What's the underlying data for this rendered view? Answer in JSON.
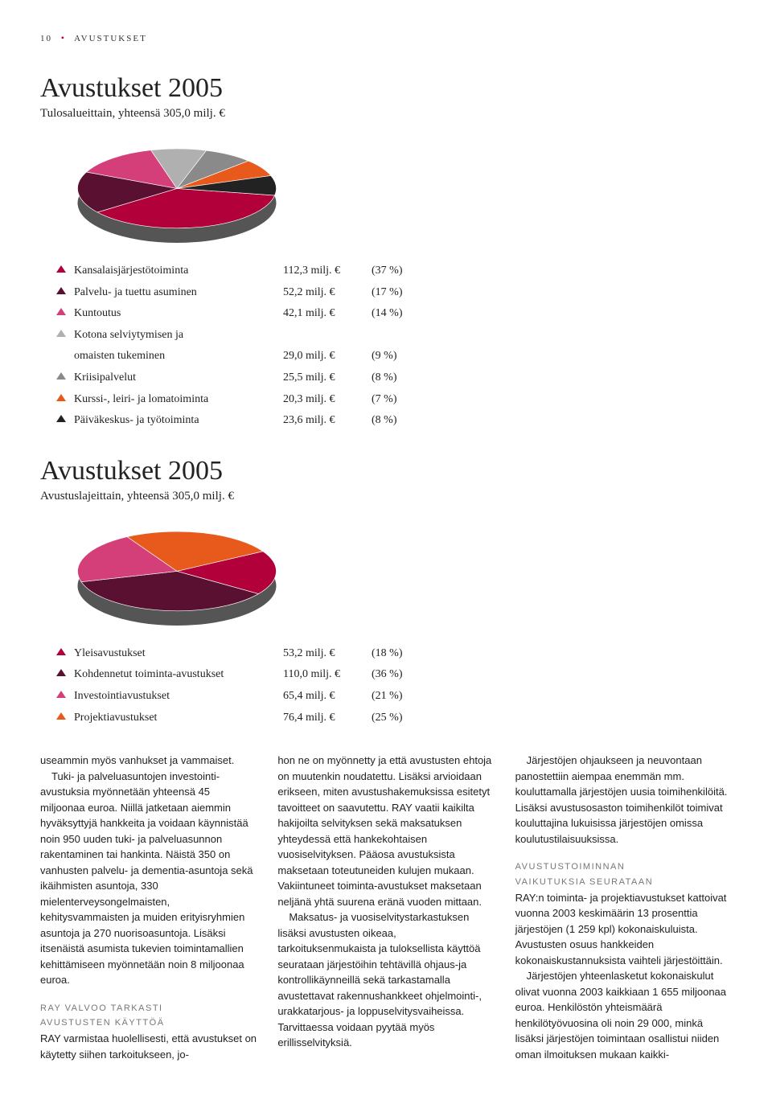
{
  "header": {
    "page_num": "10",
    "section": "AVUSTUKSET"
  },
  "chart1": {
    "title": "Avustukset 2005",
    "subtitle": "Tulosalueittain, yhteensä 305,0 milj. €",
    "type": "pie",
    "slices": [
      {
        "pct": 37,
        "color": "#b1003a"
      },
      {
        "pct": 17,
        "color": "#5a1030"
      },
      {
        "pct": 14,
        "color": "#d43f7a"
      },
      {
        "pct": 9,
        "color": "#b0b0b0"
      },
      {
        "pct": 8,
        "color": "#8a8a8a"
      },
      {
        "pct": 7,
        "color": "#e85a1c"
      },
      {
        "pct": 8,
        "color": "#222222"
      }
    ],
    "legend": [
      {
        "color": "#b1003a",
        "label": "Kansalaisjärjestötoiminta",
        "value": "112,3 milj. €",
        "pct": "(37 %)"
      },
      {
        "color": "#5a1030",
        "label": "Palvelu- ja tuettu asuminen",
        "value": "52,2 milj. €",
        "pct": "(17 %)"
      },
      {
        "color": "#d43f7a",
        "label": "Kuntoutus",
        "value": "42,1 milj. €",
        "pct": "(14 %)"
      },
      {
        "color": "#b0b0b0",
        "label": "Kotona selviytymisen ja",
        "label2": "omaisten tukeminen",
        "value": "29,0 milj. €",
        "pct": "(9 %)"
      },
      {
        "color": "#8a8a8a",
        "label": "Kriisipalvelut",
        "value": "25,5 milj. €",
        "pct": "(8 %)"
      },
      {
        "color": "#e85a1c",
        "label": "Kurssi-, leiri- ja lomatoiminta",
        "value": "20,3 milj. €",
        "pct": "(7 %)"
      },
      {
        "color": "#222222",
        "label": "Päiväkeskus- ja työtoiminta",
        "value": "23,6 milj. €",
        "pct": "(8 %)"
      }
    ]
  },
  "chart2": {
    "title": "Avustukset 2005",
    "subtitle": "Avustuslajeittain, yhteensä 305,0 milj. €",
    "type": "pie",
    "slices": [
      {
        "pct": 18,
        "color": "#b1003a"
      },
      {
        "pct": 36,
        "color": "#5a1030"
      },
      {
        "pct": 21,
        "color": "#d43f7a"
      },
      {
        "pct": 25,
        "color": "#e85a1c"
      }
    ],
    "legend": [
      {
        "color": "#b1003a",
        "label": "Yleisavustukset",
        "value": "53,2 milj. €",
        "pct": "(18 %)"
      },
      {
        "color": "#5a1030",
        "label": "Kohdennetut toiminta-avustukset",
        "value": "110,0 milj. €",
        "pct": "(36 %)"
      },
      {
        "color": "#d43f7a",
        "label": "Investointiavustukset",
        "value": "65,4 milj. €",
        "pct": "(21 %)"
      },
      {
        "color": "#e85a1c",
        "label": "Projektiavustukset",
        "value": "76,4 milj. €",
        "pct": "(25 %)"
      }
    ]
  },
  "body": {
    "col1": {
      "p1": "useammin myös vanhukset ja vammaiset.",
      "p2": "Tuki- ja palveluasuntojen investointi-avustuksia myönnetään yhteensä 45 miljoonaa euroa. Niillä jatketaan aiemmin hyväksyttyjä hankkeita ja voidaan käynnistää noin 950 uuden tuki- ja palveluasunnon rakentaminen tai hankinta. Näistä 350 on vanhusten palvelu- ja dementia-asuntoja sekä ikäihmisten asuntoja, 330 mielenterveysongelmaisten, kehitysvammaisten ja muiden erityisryhmien asuntoja ja 270 nuorisoasuntoja. Lisäksi itsenäistä asumista tukevien toimintamallien kehittämiseen myönnetään noin 8 miljoonaa euroa.",
      "h1a": "RAY VALVOO TARKASTI",
      "h1b": "AVUSTUSTEN KÄYTTÖÄ",
      "p3": "RAY varmistaa huolellisesti, että avustukset on käytetty siihen tarkoitukseen, jo-"
    },
    "col2": {
      "p1": "hon ne on myönnetty ja että avustusten ehtoja on muutenkin noudatettu. Lisäksi arvioidaan erikseen, miten avustushakemuksissa esitetyt tavoitteet on saavutettu. RAY vaatii kaikilta hakijoilta selvityksen sekä maksatuksen yhteydessä että hankekohtaisen vuosiselvityksen. Pääosa avustuksista maksetaan toteutuneiden kulujen mukaan. Vakiintuneet toiminta-avustukset maksetaan neljänä yhtä suurena eränä vuoden mittaan.",
      "p2": "Maksatus- ja vuosiselvitystarkastuksen lisäksi avustusten oikeaa, tarkoituksenmukaista ja tuloksellista käyttöä seurataan järjestöihin tehtävillä ohjaus-ja kontrollikäynneillä sekä tarkastamalla avustettavat rakennushankkeet ohjelmointi-, urakkatarjous- ja loppuselvitysvaiheissa. Tarvittaessa voidaan pyytää myös erillisselvityksiä."
    },
    "col3": {
      "p1": "Järjestöjen ohjaukseen ja neuvontaan panostettiin aiempaa enemmän mm. kouluttamalla järjestöjen uusia toimihenkilöitä. Lisäksi avustusosaston toimihenkilöt toimivat kouluttajina lukuisissa järjestöjen omissa koulutustilaisuuksissa.",
      "h1a": "AVUSTUSTOIMINNAN",
      "h1b": "VAIKUTUKSIA SEURATAAN",
      "p2": "RAY:n toiminta- ja projektiavustukset kattoivat vuonna 2003 keskimäärin 13 prosenttia järjestöjen (1 259 kpl) kokonaiskuluista. Avustusten osuus hankkeiden kokonaiskustannuksista vaihteli järjestöittäin.",
      "p3": "Järjestöjen yhteenlasketut kokonaiskulut olivat vuonna 2003 kaikkiaan 1 655 miljoonaa euroa. Henkilöstön yhteismäärä henkilötyövuosina oli noin 29 000, minkä lisäksi järjestöjen toimintaan osallistui niiden oman ilmoituksen mukaan kaikki-"
    }
  }
}
